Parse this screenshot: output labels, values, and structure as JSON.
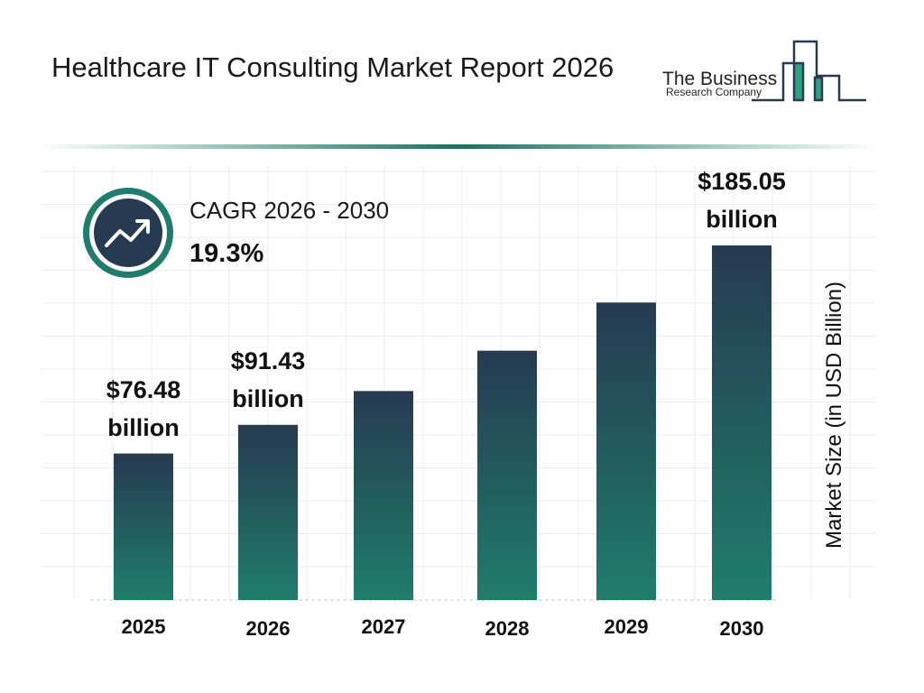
{
  "chart_data": {
    "type": "bar",
    "title": "Healthcare IT Consulting Market Report 2026",
    "categories": [
      "2025",
      "2026",
      "2027",
      "2028",
      "2029",
      "2030"
    ],
    "values": [
      76.48,
      91.43,
      109.08,
      130.13,
      155.25,
      185.05
    ],
    "value_labels": [
      "$76.48 billion",
      "$91.43 billion",
      null,
      null,
      null,
      "$185.05 billion"
    ],
    "y_axis_label": "Market Size (in USD Billion)",
    "cagr_label": "CAGR 2026 - 2030",
    "cagr_value": "19.3%"
  },
  "logo": {
    "line1": "The Business",
    "line2": "Research Company"
  }
}
